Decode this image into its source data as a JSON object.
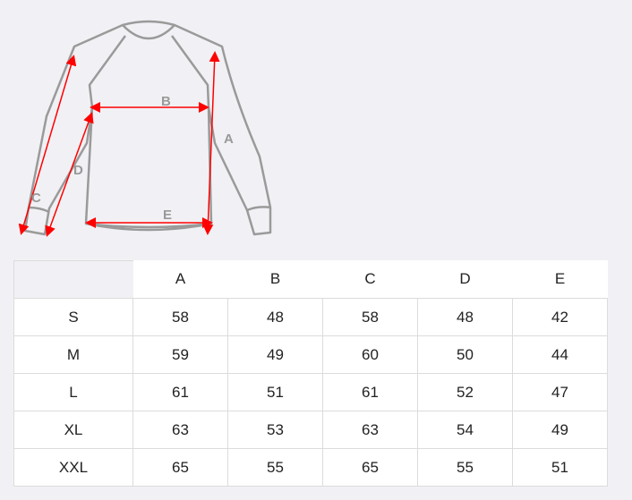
{
  "diagram": {
    "labels": [
      "A",
      "B",
      "C",
      "D",
      "E"
    ],
    "outline_color": "#9a9a9a",
    "arrow_color": "#ff0000"
  },
  "table": {
    "columns": [
      "A",
      "B",
      "C",
      "D",
      "E"
    ],
    "rows": [
      {
        "size": "S",
        "values": [
          "58",
          "48",
          "58",
          "48",
          "42"
        ]
      },
      {
        "size": "M",
        "values": [
          "59",
          "49",
          "60",
          "50",
          "44"
        ]
      },
      {
        "size": "L",
        "values": [
          "61",
          "51",
          "61",
          "52",
          "47"
        ]
      },
      {
        "size": "XL",
        "values": [
          "63",
          "53",
          "63",
          "54",
          "49"
        ]
      },
      {
        "size": "XXL",
        "values": [
          "65",
          "55",
          "65",
          "55",
          "51"
        ]
      }
    ]
  }
}
